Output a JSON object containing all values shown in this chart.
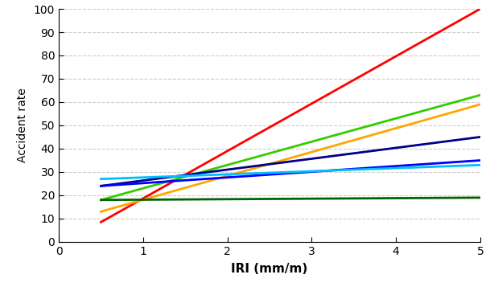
{
  "lines": [
    {
      "color": "#FF0000",
      "intercept": -1.67,
      "slope": 20.33,
      "linewidth": 2.0
    },
    {
      "color": "#33CC00",
      "intercept": 13.0,
      "slope": 10.0,
      "linewidth": 2.0
    },
    {
      "color": "#FFA500",
      "intercept": 7.89,
      "slope": 10.22,
      "linewidth": 2.0
    },
    {
      "color": "#00008B",
      "intercept": 21.67,
      "slope": 4.67,
      "linewidth": 2.0
    },
    {
      "color": "#0000FF",
      "intercept": 22.78,
      "slope": 2.44,
      "linewidth": 2.0
    },
    {
      "color": "#00BFFF",
      "intercept": 26.33,
      "slope": 1.33,
      "linewidth": 2.0
    },
    {
      "color": "#006400",
      "intercept": 17.89,
      "slope": 0.22,
      "linewidth": 2.0
    }
  ],
  "xmin": 0,
  "xmax": 5,
  "ymin": 0,
  "ymax": 100,
  "xlabel": "IRI (mm/m)",
  "ylabel": "Accident rate",
  "xlabel_fontsize": 11,
  "ylabel_fontsize": 10,
  "tick_fontsize": 10,
  "background_color": "#FFFFFF",
  "grid_color": "#AAAAAA",
  "grid_linestyle": "--",
  "grid_alpha": 0.6,
  "x_start": 0.5
}
